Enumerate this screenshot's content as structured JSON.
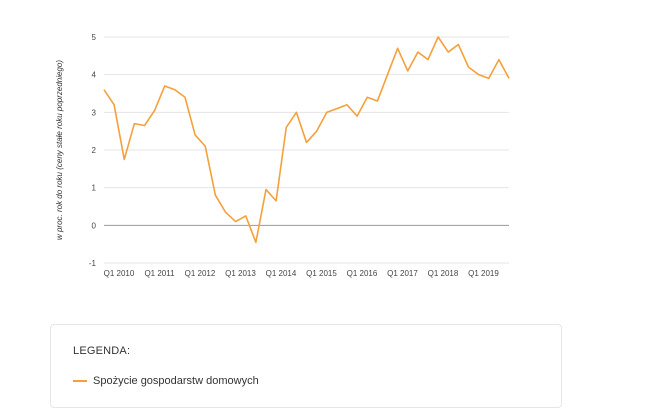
{
  "chart_data": {
    "type": "line",
    "title": "",
    "xlabel": "",
    "ylabel": "w proc. rok do roku (ceny stałe roku poprzedniego)",
    "ylim": [
      -1,
      5
    ],
    "yticks": [
      -1,
      0,
      1,
      2,
      3,
      4,
      5
    ],
    "grid": true,
    "legend_position": "bottom",
    "x_tick_labels": [
      "Q1 2010",
      "Q1 2011",
      "Q1 2012",
      "Q1 2013",
      "Q1 2014",
      "Q1 2015",
      "Q1 2016",
      "Q1 2017",
      "Q1 2018",
      "Q1 2019"
    ],
    "x_tick_indices": [
      0,
      4,
      8,
      12,
      16,
      20,
      24,
      28,
      32,
      36
    ],
    "series": [
      {
        "name": "Spożycie gospodarstw domowych",
        "color": "#f5a03c",
        "values": [
          3.6,
          3.2,
          1.75,
          2.7,
          2.65,
          3.05,
          3.7,
          3.6,
          3.4,
          2.4,
          2.1,
          0.8,
          0.35,
          0.1,
          0.25,
          -0.45,
          0.95,
          0.65,
          2.6,
          3.0,
          2.2,
          2.5,
          3.0,
          3.1,
          3.2,
          2.9,
          3.4,
          3.3,
          4.0,
          4.7,
          4.1,
          4.6,
          4.4,
          5.0,
          4.6,
          4.8,
          4.2,
          4.0,
          3.9,
          4.4,
          3.9
        ]
      }
    ]
  },
  "legend": {
    "title": "LEGENDA:",
    "items": [
      {
        "label": "Spożycie gospodarstw domowych",
        "color": "#f5a03c"
      }
    ]
  }
}
